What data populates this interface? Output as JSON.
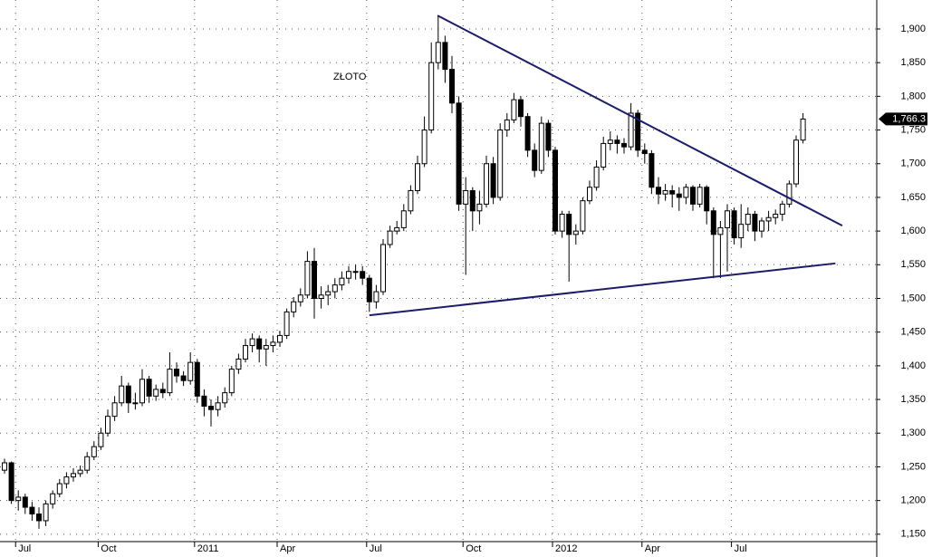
{
  "chart_data": {
    "type": "candlestick",
    "title": "ZŁOTO",
    "categories": [
      null,
      null,
      "Jul",
      null,
      null,
      null,
      null,
      null,
      null,
      null,
      null,
      null,
      null,
      null,
      "Oct",
      null,
      null,
      null,
      null,
      null,
      null,
      null,
      null,
      null,
      null,
      null,
      null,
      null,
      "2011",
      null,
      null,
      null,
      null,
      null,
      null,
      null,
      null,
      null,
      null,
      null,
      "Apr",
      null,
      null,
      null,
      null,
      null,
      null,
      null,
      null,
      null,
      null,
      null,
      null,
      "Jul",
      null,
      null,
      null,
      null,
      null,
      null,
      null,
      null,
      null,
      null,
      null,
      null,
      null,
      "Oct",
      null,
      null,
      null,
      null,
      null,
      null,
      null,
      null,
      null,
      null,
      null,
      null,
      "2012",
      null,
      null,
      null,
      null,
      null,
      null,
      null,
      null,
      null,
      null,
      null,
      null,
      "Apr",
      null,
      null,
      null,
      null,
      null,
      null,
      null,
      null,
      null,
      null,
      null,
      null,
      "Jul",
      null,
      null,
      null,
      null,
      null,
      null,
      null,
      null,
      null,
      null
    ],
    "open": [
      1245,
      1256,
      1200,
      1205,
      1190,
      1180,
      1170,
      1195,
      1210,
      1225,
      1235,
      1240,
      1245,
      1265,
      1280,
      1300,
      1325,
      1345,
      1370,
      1345,
      1345,
      1380,
      1355,
      1365,
      1360,
      1395,
      1385,
      1378,
      1405,
      1355,
      1340,
      1335,
      1345,
      1360,
      1395,
      1410,
      1430,
      1440,
      1425,
      1430,
      1435,
      1445,
      1480,
      1495,
      1505,
      1555,
      1500,
      1505,
      1510,
      1520,
      1530,
      1540,
      1540,
      1530,
      1495,
      1510,
      1580,
      1600,
      1605,
      1630,
      1660,
      1700,
      1750,
      1850,
      1880,
      1840,
      1790,
      1640,
      1660,
      1630,
      1640,
      1700,
      1650,
      1750,
      1765,
      1795,
      1770,
      1720,
      1690,
      1760,
      1720,
      1600,
      1625,
      1595,
      1600,
      1645,
      1665,
      1695,
      1730,
      1735,
      1730,
      1725,
      1775,
      1720,
      1715,
      1665,
      1655,
      1660,
      1655,
      1650,
      1665,
      1640,
      1665,
      1630,
      1595,
      1605,
      1630,
      1590,
      1610,
      1625,
      1600,
      1615,
      1620,
      1625,
      1640,
      1670,
      1735
    ],
    "high": [
      1262,
      1258,
      1215,
      1210,
      1198,
      1190,
      1200,
      1215,
      1232,
      1242,
      1248,
      1252,
      1272,
      1288,
      1308,
      1335,
      1355,
      1385,
      1375,
      1360,
      1395,
      1385,
      1372,
      1375,
      1420,
      1405,
      1392,
      1420,
      1410,
      1365,
      1350,
      1355,
      1368,
      1400,
      1418,
      1440,
      1448,
      1445,
      1440,
      1445,
      1452,
      1485,
      1502,
      1515,
      1570,
      1575,
      1518,
      1520,
      1530,
      1540,
      1548,
      1550,
      1548,
      1535,
      1520,
      1588,
      1608,
      1615,
      1640,
      1668,
      1712,
      1770,
      1880,
      1920,
      1890,
      1860,
      1800,
      1680,
      1665,
      1660,
      1712,
      1710,
      1760,
      1775,
      1805,
      1800,
      1775,
      1730,
      1770,
      1765,
      1725,
      1630,
      1630,
      1610,
      1650,
      1675,
      1705,
      1740,
      1748,
      1742,
      1738,
      1790,
      1780,
      1730,
      1720,
      1680,
      1670,
      1668,
      1665,
      1670,
      1668,
      1670,
      1668,
      1635,
      1615,
      1640,
      1635,
      1640,
      1635,
      1630,
      1620,
      1630,
      1632,
      1645,
      1675,
      1742,
      1775
    ],
    "low": [
      1240,
      1195,
      1185,
      1180,
      1170,
      1158,
      1162,
      1188,
      1205,
      1218,
      1228,
      1235,
      1240,
      1260,
      1275,
      1295,
      1318,
      1340,
      1330,
      1335,
      1340,
      1345,
      1348,
      1352,
      1355,
      1375,
      1370,
      1372,
      1345,
      1325,
      1310,
      1325,
      1338,
      1355,
      1388,
      1405,
      1420,
      1405,
      1400,
      1420,
      1428,
      1440,
      1472,
      1488,
      1500,
      1470,
      1485,
      1490,
      1500,
      1512,
      1522,
      1528,
      1520,
      1480,
      1485,
      1505,
      1575,
      1595,
      1600,
      1625,
      1655,
      1695,
      1745,
      1840,
      1820,
      1775,
      1630,
      1535,
      1600,
      1610,
      1635,
      1640,
      1645,
      1740,
      1760,
      1755,
      1710,
      1680,
      1685,
      1710,
      1595,
      1590,
      1525,
      1580,
      1595,
      1640,
      1660,
      1690,
      1720,
      1715,
      1715,
      1720,
      1710,
      1700,
      1655,
      1640,
      1645,
      1635,
      1630,
      1640,
      1630,
      1635,
      1610,
      1530,
      1530,
      1540,
      1580,
      1575,
      1600,
      1585,
      1590,
      1600,
      1610,
      1615,
      1635,
      1665,
      1730
    ],
    "close": [
      1256,
      1200,
      1205,
      1190,
      1180,
      1170,
      1195,
      1210,
      1225,
      1235,
      1240,
      1245,
      1265,
      1280,
      1300,
      1325,
      1345,
      1370,
      1345,
      1345,
      1380,
      1355,
      1365,
      1360,
      1395,
      1385,
      1378,
      1405,
      1355,
      1340,
      1335,
      1345,
      1360,
      1395,
      1410,
      1430,
      1440,
      1425,
      1430,
      1435,
      1445,
      1480,
      1495,
      1505,
      1555,
      1500,
      1505,
      1510,
      1520,
      1530,
      1540,
      1540,
      1530,
      1495,
      1510,
      1580,
      1600,
      1605,
      1630,
      1660,
      1700,
      1750,
      1850,
      1880,
      1840,
      1790,
      1640,
      1660,
      1630,
      1640,
      1700,
      1650,
      1750,
      1765,
      1795,
      1770,
      1720,
      1690,
      1760,
      1720,
      1600,
      1625,
      1595,
      1600,
      1645,
      1665,
      1695,
      1730,
      1735,
      1730,
      1725,
      1775,
      1720,
      1715,
      1665,
      1655,
      1660,
      1655,
      1650,
      1665,
      1640,
      1665,
      1630,
      1595,
      1605,
      1630,
      1590,
      1610,
      1625,
      1600,
      1615,
      1620,
      1625,
      1640,
      1670,
      1735,
      1766.3
    ],
    "last_value_label": "1,766.3",
    "trendlines": [
      {
        "x": [
          62.9,
          121.7
        ],
        "y": [
          1920,
          1608
        ],
        "color": "#1c1c6b"
      },
      {
        "x": [
          53,
          120.7
        ],
        "y": [
          1475,
          1552
        ],
        "color": "#1c1c6b"
      }
    ],
    "ylim": [
      1139,
      1943
    ],
    "yticks": [
      {
        "value": 1150,
        "label": "1,150"
      },
      {
        "value": 1200,
        "label": "1,200"
      },
      {
        "value": 1250,
        "label": "1,250"
      },
      {
        "value": 1300,
        "label": "1,300"
      },
      {
        "value": 1350,
        "label": "1,350"
      },
      {
        "value": 1400,
        "label": "1,400"
      },
      {
        "value": 1450,
        "label": "1,450"
      },
      {
        "value": 1500,
        "label": "1,500"
      },
      {
        "value": 1550,
        "label": "1,550"
      },
      {
        "value": 1600,
        "label": "1,600"
      },
      {
        "value": 1650,
        "label": "1,650"
      },
      {
        "value": 1700,
        "label": "1,700"
      },
      {
        "value": 1750,
        "label": "1,750"
      },
      {
        "value": 1800,
        "label": "1,800"
      },
      {
        "value": 1850,
        "label": "1,850"
      },
      {
        "value": 1900,
        "label": "1,900"
      }
    ],
    "grid": true
  }
}
